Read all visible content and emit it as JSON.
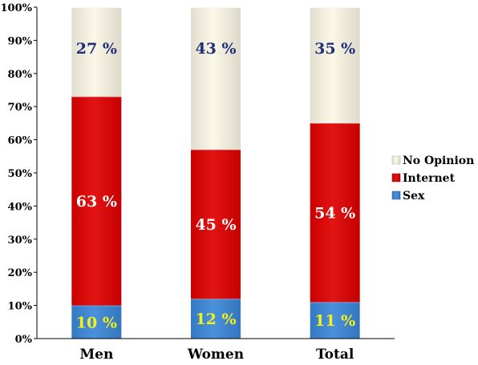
{
  "chart_data": {
    "type": "bar",
    "stacked": true,
    "percent_stacked": true,
    "categories": [
      "Men",
      "Women",
      "Total"
    ],
    "series": [
      {
        "name": "Sex",
        "values": [
          10,
          12,
          11
        ],
        "labels": [
          "10 %",
          "12 %",
          "11 %"
        ],
        "color": "#3a86d8",
        "label_color": "#f2f21a"
      },
      {
        "name": "Internet",
        "values": [
          63,
          45,
          54
        ],
        "labels": [
          "63 %",
          "45 %",
          "54 %"
        ],
        "color": "#e00000",
        "label_color": "#ffffff"
      },
      {
        "name": "No Opinion",
        "values": [
          27,
          43,
          35
        ],
        "labels": [
          "27 %",
          "43 %",
          "35 %"
        ],
        "color": "#fbf7e6",
        "label_color": "#1f2f7a"
      }
    ],
    "ylim": [
      0,
      100
    ],
    "yticks": [
      "0%",
      "10%",
      "20%",
      "30%",
      "40%",
      "50%",
      "60%",
      "70%",
      "80%",
      "90%",
      "100%"
    ],
    "legend": {
      "placement": "right",
      "order": [
        "No Opinion",
        "Internet",
        "Sex"
      ]
    },
    "grid": false,
    "title": "",
    "xlabel": "",
    "ylabel": ""
  }
}
